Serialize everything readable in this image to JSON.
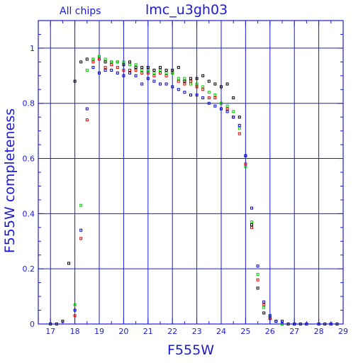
{
  "chart_data": {
    "type": "scatter",
    "title": "lmc_u3gh03",
    "subtitle": "All chips",
    "xlabel": "F555W",
    "ylabel": "F555W completeness",
    "xlim": [
      16.5,
      29
    ],
    "ylim": [
      0,
      1.1
    ],
    "x_ticks": [
      17,
      18,
      19,
      20,
      21,
      22,
      23,
      24,
      25,
      26,
      27,
      28,
      29
    ],
    "y_ticks": [
      0,
      0.2,
      0.4,
      0.6,
      0.8,
      1
    ],
    "y_tick_labels": [
      "0",
      "0.2",
      "0.4",
      "0.6",
      "0.8",
      "1"
    ],
    "grid": true,
    "series": [
      {
        "color": "#000000",
        "points": [
          [
            17,
            0
          ],
          [
            17.25,
            0
          ],
          [
            17.5,
            0.01
          ],
          [
            17.75,
            0.22
          ],
          [
            18,
            0.88
          ],
          [
            18.25,
            0.95
          ],
          [
            18.5,
            0.96
          ],
          [
            18.75,
            0.96
          ],
          [
            19,
            0.96
          ],
          [
            19.25,
            0.95
          ],
          [
            19.5,
            0.95
          ],
          [
            19.75,
            0.95
          ],
          [
            20,
            0.94
          ],
          [
            20.25,
            0.95
          ],
          [
            20.5,
            0.93
          ],
          [
            20.75,
            0.93
          ],
          [
            21,
            0.93
          ],
          [
            21.25,
            0.92
          ],
          [
            21.5,
            0.93
          ],
          [
            21.75,
            0.92
          ],
          [
            22,
            0.92
          ],
          [
            22.25,
            0.93
          ],
          [
            22.5,
            0.88
          ],
          [
            22.75,
            0.89
          ],
          [
            23,
            0.89
          ],
          [
            23.25,
            0.9
          ],
          [
            23.5,
            0.88
          ],
          [
            23.75,
            0.87
          ],
          [
            24,
            0.86
          ],
          [
            24.25,
            0.87
          ],
          [
            24.5,
            0.82
          ],
          [
            24.75,
            0.75
          ],
          [
            25,
            0.61
          ],
          [
            25.25,
            0.36
          ],
          [
            25.5,
            0.13
          ],
          [
            25.75,
            0.04
          ],
          [
            26,
            0.02
          ],
          [
            26.25,
            0.01
          ],
          [
            26.5,
            0.01
          ],
          [
            26.75,
            0
          ],
          [
            27,
            0
          ],
          [
            27.25,
            0
          ],
          [
            27.5,
            0
          ],
          [
            28,
            0
          ],
          [
            28.25,
            0
          ],
          [
            28.5,
            0
          ],
          [
            28.75,
            0
          ]
        ]
      },
      {
        "color": "#e00000",
        "points": [
          [
            18,
            0.03
          ],
          [
            18.25,
            0.31
          ],
          [
            18.5,
            0.74
          ],
          [
            18.75,
            0.95
          ],
          [
            19,
            0.96
          ],
          [
            19.25,
            0.93
          ],
          [
            19.5,
            0.94
          ],
          [
            19.75,
            0.93
          ],
          [
            20,
            0.92
          ],
          [
            20.25,
            0.92
          ],
          [
            20.5,
            0.92
          ],
          [
            20.75,
            0.91
          ],
          [
            21,
            0.91
          ],
          [
            21.25,
            0.9
          ],
          [
            21.5,
            0.91
          ],
          [
            21.75,
            0.9
          ],
          [
            22,
            0.91
          ],
          [
            22.25,
            0.88
          ],
          [
            22.5,
            0.87
          ],
          [
            22.75,
            0.88
          ],
          [
            23,
            0.86
          ],
          [
            23.25,
            0.85
          ],
          [
            23.5,
            0.82
          ],
          [
            23.75,
            0.82
          ],
          [
            24,
            0.8
          ],
          [
            24.25,
            0.78
          ],
          [
            24.5,
            0.75
          ],
          [
            24.75,
            0.69
          ],
          [
            25,
            0.58
          ],
          [
            25.25,
            0.35
          ],
          [
            25.5,
            0.16
          ],
          [
            25.75,
            0.07
          ],
          [
            26,
            0.02
          ],
          [
            26.25,
            0.01
          ],
          [
            26.5,
            0
          ],
          [
            27,
            0
          ],
          [
            27.5,
            0
          ]
        ]
      },
      {
        "color": "#00cc00",
        "points": [
          [
            18,
            0.07
          ],
          [
            18.25,
            0.43
          ],
          [
            18.5,
            0.92
          ],
          [
            18.75,
            0.96
          ],
          [
            19,
            0.97
          ],
          [
            19.25,
            0.96
          ],
          [
            19.5,
            0.95
          ],
          [
            19.75,
            0.95
          ],
          [
            20,
            0.95
          ],
          [
            20.25,
            0.94
          ],
          [
            20.5,
            0.94
          ],
          [
            20.75,
            0.92
          ],
          [
            21,
            0.92
          ],
          [
            21.25,
            0.91
          ],
          [
            21.5,
            0.92
          ],
          [
            21.75,
            0.91
          ],
          [
            22,
            0.91
          ],
          [
            22.25,
            0.89
          ],
          [
            22.5,
            0.89
          ],
          [
            22.75,
            0.87
          ],
          [
            23,
            0.87
          ],
          [
            23.25,
            0.86
          ],
          [
            23.5,
            0.84
          ],
          [
            23.75,
            0.83
          ],
          [
            24,
            0.8
          ],
          [
            24.25,
            0.79
          ],
          [
            24.5,
            0.77
          ],
          [
            24.75,
            0.71
          ],
          [
            25,
            0.57
          ],
          [
            25.25,
            0.37
          ],
          [
            25.5,
            0.18
          ],
          [
            25.75,
            0.06
          ],
          [
            26,
            0.03
          ],
          [
            26.25,
            0.01
          ],
          [
            26.5,
            0
          ],
          [
            27,
            0
          ]
        ]
      },
      {
        "color": "#0000cc",
        "points": [
          [
            18,
            0.05
          ],
          [
            18.25,
            0.34
          ],
          [
            18.5,
            0.78
          ],
          [
            18.75,
            0.93
          ],
          [
            19,
            0.91
          ],
          [
            19.25,
            0.92
          ],
          [
            19.5,
            0.92
          ],
          [
            19.75,
            0.91
          ],
          [
            20,
            0.9
          ],
          [
            20.25,
            0.91
          ],
          [
            20.5,
            0.9
          ],
          [
            20.75,
            0.87
          ],
          [
            21,
            0.89
          ],
          [
            21.25,
            0.88
          ],
          [
            21.5,
            0.87
          ],
          [
            21.75,
            0.87
          ],
          [
            22,
            0.86
          ],
          [
            22.25,
            0.85
          ],
          [
            22.5,
            0.84
          ],
          [
            22.75,
            0.83
          ],
          [
            23,
            0.83
          ],
          [
            23.25,
            0.82
          ],
          [
            23.5,
            0.8
          ],
          [
            23.75,
            0.79
          ],
          [
            24,
            0.78
          ],
          [
            24.25,
            0.77
          ],
          [
            24.5,
            0.75
          ],
          [
            24.75,
            0.72
          ],
          [
            25,
            0.61
          ],
          [
            25.25,
            0.42
          ],
          [
            25.5,
            0.21
          ],
          [
            25.75,
            0.08
          ],
          [
            26,
            0.03
          ],
          [
            26.25,
            0.01
          ],
          [
            26.5,
            0.01
          ],
          [
            27,
            0
          ],
          [
            27.5,
            0
          ],
          [
            28,
            0
          ],
          [
            28.5,
            0
          ]
        ]
      }
    ]
  }
}
